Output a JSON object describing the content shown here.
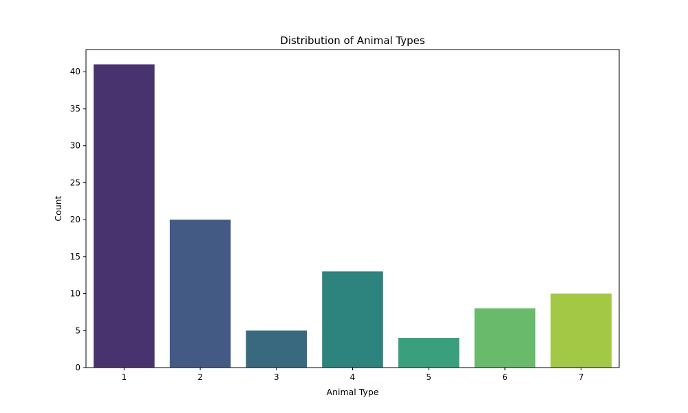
{
  "chart_data": {
    "type": "bar",
    "title": "Distribution of Animal Types",
    "xlabel": "Animal Type",
    "ylabel": "Count",
    "categories": [
      "1",
      "2",
      "3",
      "4",
      "5",
      "6",
      "7"
    ],
    "values": [
      41,
      20,
      5,
      13,
      4,
      8,
      10
    ],
    "colors": [
      "#48336f",
      "#435a84",
      "#38697e",
      "#2d837e",
      "#3a9f7c",
      "#69bb6b",
      "#a2c845"
    ],
    "ylim": [
      0,
      43
    ],
    "yticks": [
      0,
      5,
      10,
      15,
      20,
      25,
      30,
      35,
      40
    ],
    "grid": false,
    "legend": "none"
  }
}
